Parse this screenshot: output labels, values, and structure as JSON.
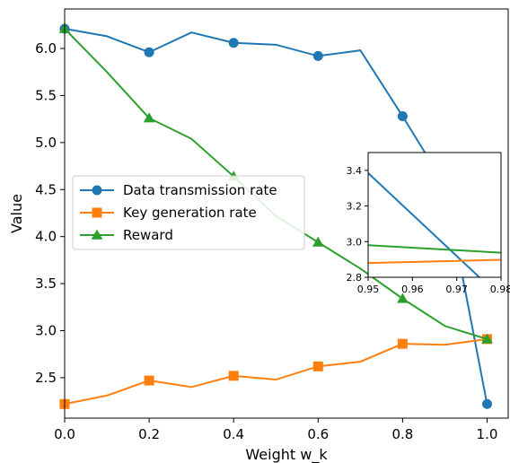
{
  "chart_data": {
    "type": "line",
    "title": "",
    "xlabel": "Weight w_k",
    "ylabel": "Value",
    "xlim": [
      0.0,
      1.05
    ],
    "ylim": [
      2.07,
      6.42
    ],
    "xticks": [
      "0.0",
      "0.2",
      "0.4",
      "0.6",
      "0.8",
      "1.0"
    ],
    "yticks": [
      "2.5",
      "3.0",
      "3.5",
      "4.0",
      "4.5",
      "5.0",
      "5.5",
      "6.0"
    ],
    "grid": false,
    "legend_position": "center-left",
    "x": [
      0.0,
      0.1,
      0.2,
      0.3,
      0.4,
      0.5,
      0.6,
      0.7,
      0.8,
      0.9,
      1.0
    ],
    "series": [
      {
        "name": "Data transmission rate",
        "color": "#1f77b4",
        "marker": "circle",
        "values": [
          6.21,
          6.13,
          5.96,
          6.17,
          6.06,
          6.04,
          5.92,
          5.98,
          5.28,
          4.55,
          2.22
        ]
      },
      {
        "name": "Key generation rate",
        "color": "#ff7f0e",
        "marker": "square",
        "values": [
          2.22,
          2.31,
          2.47,
          2.4,
          2.52,
          2.48,
          2.62,
          2.67,
          2.86,
          2.85,
          2.91
        ]
      },
      {
        "name": "Reward",
        "color": "#2ca02c",
        "marker": "triangle",
        "values": [
          6.21,
          5.75,
          5.26,
          5.04,
          4.64,
          4.22,
          3.94,
          3.66,
          3.34,
          3.05,
          2.91
        ]
      }
    ],
    "inset": {
      "xlim": [
        0.95,
        0.98
      ],
      "ylim": [
        2.8,
        3.5
      ],
      "xticks": [
        "0.95",
        "0.96",
        "0.97",
        "0.98"
      ],
      "yticks": [
        "2.8",
        "3.0",
        "3.2",
        "3.4"
      ]
    }
  }
}
